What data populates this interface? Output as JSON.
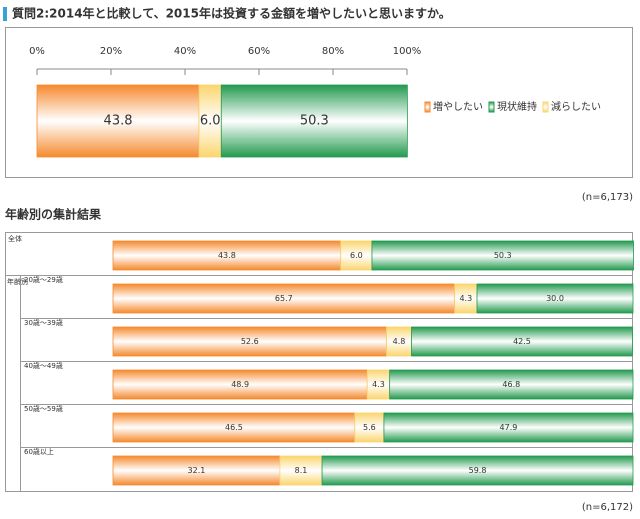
{
  "chart_data": [
    {
      "type": "bar",
      "orientation": "horizontal",
      "stacked": true,
      "title": "質問2:2014年と比較して、2015年は投資する金額を増やしたいと思いますか。",
      "categories": [
        null
      ],
      "series": [
        {
          "name": "増やしたい",
          "color": "#f58a2e",
          "values": [
            43.8
          ],
          "value_labels": [
            "43.8"
          ]
        },
        {
          "name": "現状維持",
          "color": "#239a4f",
          "values": [
            50.3
          ],
          "value_labels": [
            "50.3"
          ]
        },
        {
          "name": "減らしたい",
          "color": "#fbd56e",
          "values": [
            6.0
          ],
          "value_labels": [
            "6.0"
          ]
        }
      ],
      "xlim": [
        0,
        100
      ],
      "xticks": [
        {
          "value": 0,
          "label": "0%"
        },
        {
          "value": 20,
          "label": "20%"
        },
        {
          "value": 40,
          "label": "40%"
        },
        {
          "value": 60,
          "label": "60%"
        },
        {
          "value": 80,
          "label": "80%"
        },
        {
          "value": 100,
          "label": "100%"
        }
      ],
      "legend": "right",
      "note": "(n=6,173)"
    },
    {
      "type": "bar",
      "orientation": "horizontal",
      "stacked": true,
      "title": "年齢別の集計結果",
      "group_label": "年齢別",
      "categories": [
        "全体",
        "20歳～29歳",
        "30歳～39歳",
        "40歳～49歳",
        "50歳～59歳",
        "60歳以上"
      ],
      "series": [
        {
          "color": "#f58a2e",
          "values": [
            43.8,
            65.7,
            52.6,
            48.9,
            46.5,
            32.1
          ],
          "value_labels": [
            "43.8",
            "65.7",
            "52.6",
            "48.9",
            "46.5",
            "32.1"
          ]
        },
        {
          "color": "#239a4f",
          "values": [
            50.3,
            30.0,
            42.5,
            46.8,
            47.9,
            59.8
          ],
          "value_labels": [
            "50.3",
            "30.0",
            "42.5",
            "46.8",
            "47.9",
            "59.8"
          ]
        },
        {
          "color": "#fbd56e",
          "values": [
            6.0,
            4.3,
            4.8,
            4.3,
            5.6,
            8.1
          ],
          "value_labels": [
            "6.0",
            "4.3",
            "4.8",
            "4.3",
            "5.6",
            "8.1"
          ]
        }
      ],
      "xlim": [
        0,
        100
      ],
      "note": "(n=6,172)"
    }
  ]
}
